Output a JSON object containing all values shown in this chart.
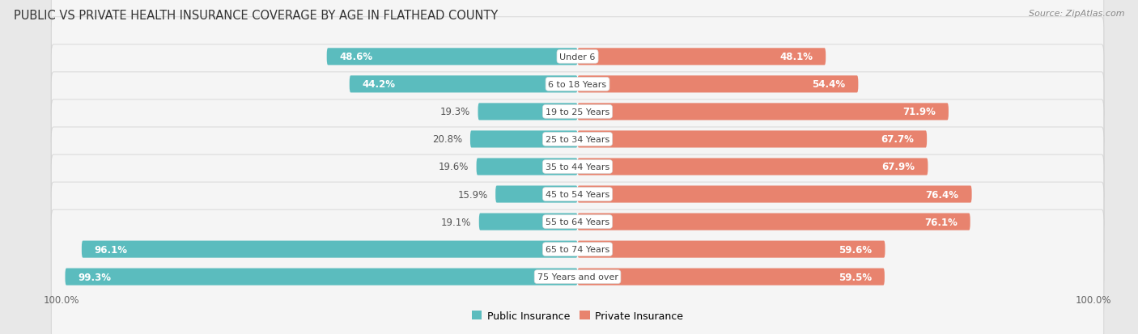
{
  "title": "PUBLIC VS PRIVATE HEALTH INSURANCE COVERAGE BY AGE IN FLATHEAD COUNTY",
  "source": "Source: ZipAtlas.com",
  "categories": [
    "Under 6",
    "6 to 18 Years",
    "19 to 25 Years",
    "25 to 34 Years",
    "35 to 44 Years",
    "45 to 54 Years",
    "55 to 64 Years",
    "65 to 74 Years",
    "75 Years and over"
  ],
  "public_values": [
    48.6,
    44.2,
    19.3,
    20.8,
    19.6,
    15.9,
    19.1,
    96.1,
    99.3
  ],
  "private_values": [
    48.1,
    54.4,
    71.9,
    67.7,
    67.9,
    76.4,
    76.1,
    59.6,
    59.5
  ],
  "public_color": "#5bbcbe",
  "private_color": "#e8836e",
  "public_color_light": "#a8dfe0",
  "private_color_light": "#f2b8a8",
  "bg_color": "#e8e8e8",
  "row_bg": "#f5f5f5",
  "max_value": 100.0,
  "title_fontsize": 10.5,
  "source_fontsize": 8,
  "bar_label_fontsize": 8.5,
  "category_fontsize": 8,
  "legend_fontsize": 9,
  "axis_label_fontsize": 8.5
}
